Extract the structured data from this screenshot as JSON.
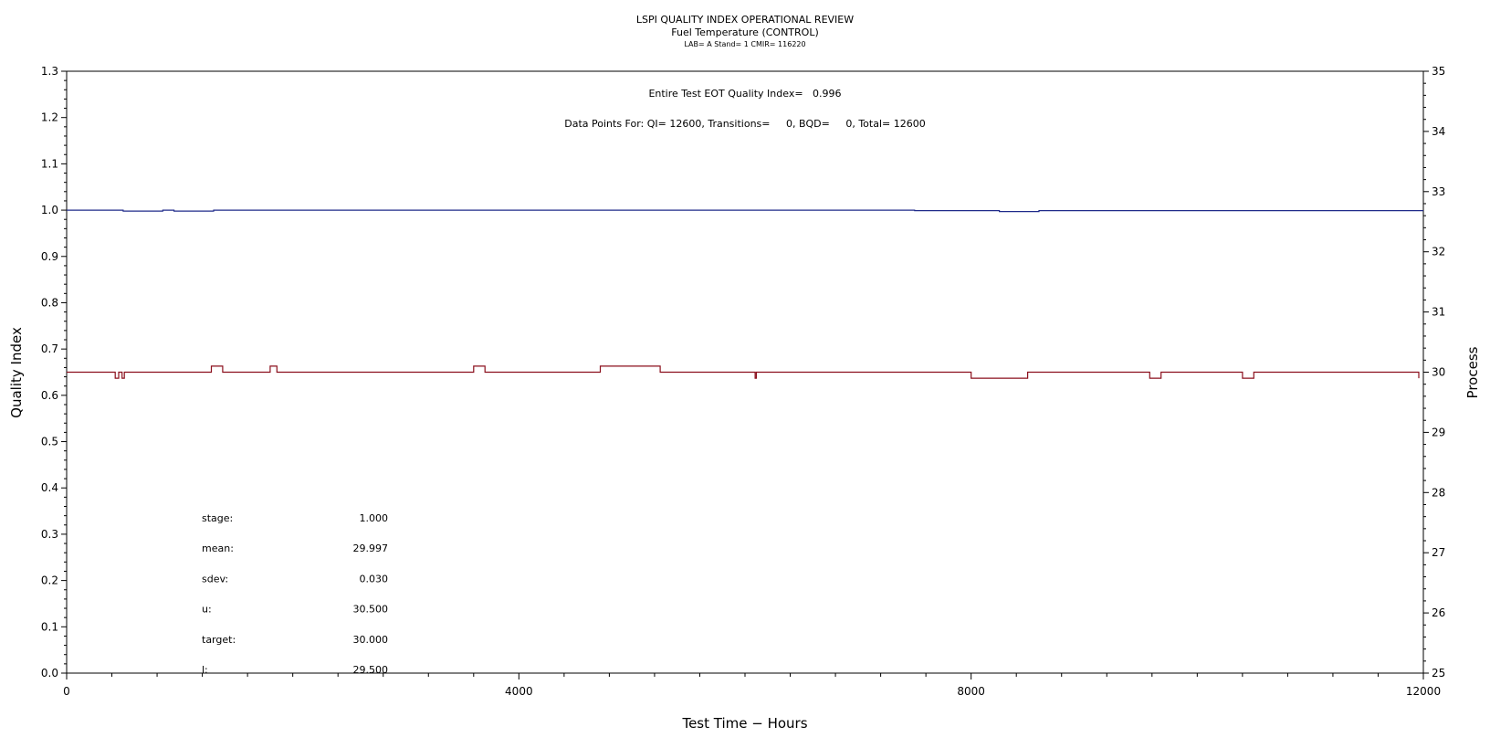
{
  "chart_data": {
    "type": "line",
    "title": "LSPI QUALITY INDEX OPERATIONAL REVIEW",
    "subtitle": "Fuel Temperature (CONTROL)",
    "subsubtitle": "LAB= A Stand= 1 CMIR= 116220",
    "annotation_line1": "Entire Test EOT Quality Index=   0.996",
    "annotation_line2": "Data Points For: QI= 12600, Transitions=     0, BQD=     0, Total= 12600",
    "xlabel": "Test Time − Hours",
    "ylabel": "Quality Index",
    "y2label": "Process",
    "xlim": [
      0,
      12000
    ],
    "ylim": [
      0,
      1.3
    ],
    "y2lim": [
      25,
      35
    ],
    "x_ticks": [
      "0",
      "4000",
      "8000",
      "12000"
    ],
    "y_ticks": [
      "0.0",
      "0.1",
      "0.2",
      "0.3",
      "0.4",
      "0.5",
      "0.6",
      "0.7",
      "0.8",
      "0.9",
      "1.0",
      "1.1",
      "1.2",
      "1.3"
    ],
    "y2_ticks": [
      "25",
      "26",
      "27",
      "28",
      "29",
      "30",
      "31",
      "32",
      "33",
      "34",
      "35"
    ],
    "grid": false,
    "series": [
      {
        "axis": "left",
        "color": "#1f2a8a",
        "x": [
          0,
          500,
          500,
          850,
          850,
          950,
          950,
          1300,
          1300,
          7500,
          7500,
          8250,
          8250,
          8600,
          8600,
          12000
        ],
        "y": [
          1.0,
          1.0,
          0.998,
          0.998,
          1.0,
          1.0,
          0.998,
          0.998,
          1.0,
          1.0,
          0.999,
          0.999,
          0.997,
          0.997,
          0.999,
          0.999
        ]
      },
      {
        "axis": "right",
        "color": "#8b0f1c",
        "x": [
          0,
          430,
          430,
          460,
          460,
          490,
          490,
          510,
          510,
          1280,
          1280,
          1380,
          1380,
          1800,
          1800,
          1860,
          1860,
          3600,
          3600,
          3700,
          3700,
          4720,
          4720,
          5250,
          5250,
          6090,
          6090,
          6100,
          6100,
          8000,
          8000,
          8500,
          8500,
          9580,
          9580,
          9680,
          9680,
          10400,
          10400,
          10500,
          10500,
          11960,
          11960
        ],
        "y": [
          30.0,
          30.0,
          29.9,
          29.9,
          30.0,
          30.0,
          29.9,
          29.9,
          30.0,
          30.0,
          30.1,
          30.1,
          30.0,
          30.0,
          30.1,
          30.1,
          30.0,
          30.0,
          30.1,
          30.1,
          30.0,
          30.0,
          30.1,
          30.1,
          30.0,
          30.0,
          29.9,
          29.9,
          30.0,
          30.0,
          29.9,
          29.9,
          30.0,
          30.0,
          29.9,
          29.9,
          30.0,
          30.0,
          29.9,
          29.9,
          30.0,
          30.0,
          29.9
        ]
      }
    ]
  },
  "stats": [
    {
      "label": "stage:",
      "value": "1.000"
    },
    {
      "label": "mean:",
      "value": "29.997"
    },
    {
      "label": "sdev:",
      "value": "0.030"
    },
    {
      "label": "u:",
      "value": "30.500"
    },
    {
      "label": "target:",
      "value": "30.000"
    },
    {
      "label": "l:",
      "value": "29.500"
    }
  ]
}
